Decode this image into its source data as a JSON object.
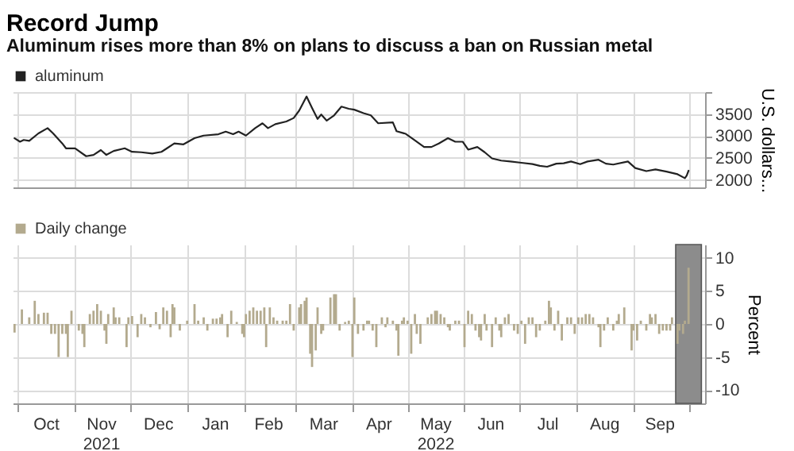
{
  "chart_data": [
    {
      "type": "line",
      "title": "Record Jump",
      "subtitle": "Aluminum rises more than 8% on plans to discuss a ban on Russian metal",
      "ylabel": "U.S. dollars...",
      "legend": "top left",
      "grid": true,
      "tick_labels": "y",
      "xlim": [
        "2021-09-28",
        "2022-10-10"
      ],
      "xticks": [
        {
          "value": "2021-10-01",
          "label": null
        },
        {
          "value": "2021-11-01",
          "label": null
        },
        {
          "value": "2021-12-01",
          "label": null
        },
        {
          "value": "2022-01-01",
          "label": null
        },
        {
          "value": "2022-02-01",
          "label": null
        },
        {
          "value": "2022-03-01",
          "label": null
        },
        {
          "value": "2022-04-01",
          "label": null
        },
        {
          "value": "2022-05-01",
          "label": null
        },
        {
          "value": "2022-06-01",
          "label": null
        },
        {
          "value": "2022-07-01",
          "label": null
        },
        {
          "value": "2022-08-01",
          "label": null
        },
        {
          "value": "2022-09-01",
          "label": null
        },
        {
          "value": "2022-10-01",
          "label": null
        }
      ],
      "ylim": [
        1830,
        4000
      ],
      "yticks": [
        2000,
        2500,
        3000,
        3500,
        {
          "value": 4000,
          "label": null
        }
      ],
      "series": [
        {
          "name": "aluminum",
          "color": "#222222",
          "x": [
            "2021-09-29",
            "2021-10-02",
            "2021-10-04",
            "2021-10-07",
            "2021-10-12",
            "2021-10-17",
            "2021-10-20",
            "2021-10-25",
            "2021-10-27",
            "2021-11-01",
            "2021-11-07",
            "2021-11-11",
            "2021-11-15",
            "2021-11-18",
            "2021-11-22",
            "2021-11-28",
            "2021-12-02",
            "2021-12-07",
            "2021-12-13",
            "2021-12-18",
            "2021-12-21",
            "2021-12-25",
            "2021-12-30",
            "2022-01-05",
            "2022-01-10",
            "2022-01-18",
            "2022-01-22",
            "2022-01-26",
            "2022-01-29",
            "2022-02-02",
            "2022-02-07",
            "2022-02-11",
            "2022-02-14",
            "2022-02-18",
            "2022-02-24",
            "2022-02-28",
            "2022-03-03",
            "2022-03-07",
            "2022-03-10",
            "2022-03-13",
            "2022-03-15",
            "2022-03-18",
            "2022-03-22",
            "2022-03-26",
            "2022-03-30",
            "2022-04-02",
            "2022-04-07",
            "2022-04-11",
            "2022-04-15",
            "2022-04-23",
            "2022-04-25",
            "2022-04-30",
            "2022-05-04",
            "2022-05-10",
            "2022-05-14",
            "2022-05-18",
            "2022-05-23",
            "2022-05-27",
            "2022-05-31",
            "2022-06-03",
            "2022-06-08",
            "2022-06-12",
            "2022-06-16",
            "2022-06-21",
            "2022-06-26",
            "2022-07-02",
            "2022-07-08",
            "2022-07-12",
            "2022-07-16",
            "2022-07-21",
            "2022-07-25",
            "2022-07-29",
            "2022-08-03",
            "2022-08-07",
            "2022-08-13",
            "2022-08-17",
            "2022-08-21",
            "2022-08-29",
            "2022-09-02",
            "2022-09-08",
            "2022-09-13",
            "2022-09-19",
            "2022-09-25",
            "2022-09-29",
            "2022-09-30",
            "2022-10-01"
          ],
          "values": [
            2950,
            2870,
            2910,
            2890,
            3060,
            3180,
            3060,
            2830,
            2720,
            2720,
            2540,
            2570,
            2680,
            2570,
            2660,
            2720,
            2640,
            2630,
            2600,
            2640,
            2720,
            2830,
            2810,
            2950,
            3010,
            3040,
            3100,
            3040,
            3100,
            3010,
            3180,
            3290,
            3180,
            3270,
            3330,
            3410,
            3580,
            3900,
            3640,
            3390,
            3490,
            3350,
            3470,
            3670,
            3620,
            3600,
            3520,
            3470,
            3290,
            3310,
            3110,
            3050,
            2930,
            2750,
            2750,
            2830,
            2950,
            2870,
            2870,
            2690,
            2750,
            2630,
            2490,
            2440,
            2420,
            2390,
            2360,
            2320,
            2300,
            2370,
            2380,
            2420,
            2360,
            2420,
            2460,
            2370,
            2350,
            2420,
            2270,
            2200,
            2240,
            2190,
            2130,
            2040,
            2100,
            2210
          ]
        }
      ]
    },
    {
      "type": "bar",
      "ylabel": "Percent",
      "legend": "top left",
      "grid": true,
      "xlim": [
        "2021-09-28",
        "2022-10-10"
      ],
      "xticks": [
        {
          "value": "2021-10-01",
          "label": null
        },
        {
          "value": "2021-10-16",
          "label": "Oct"
        },
        {
          "value": "2021-11-01",
          "label": null
        },
        {
          "value": "2021-11-15",
          "label": "Nov\n2021"
        },
        {
          "value": "2021-12-01",
          "label": null
        },
        {
          "value": "2021-12-16",
          "label": "Dec"
        },
        {
          "value": "2022-01-01",
          "label": null
        },
        {
          "value": "2022-01-16",
          "label": "Jan"
        },
        {
          "value": "2022-02-01",
          "label": null
        },
        {
          "value": "2022-02-14",
          "label": "Feb"
        },
        {
          "value": "2022-03-01",
          "label": null
        },
        {
          "value": "2022-03-16",
          "label": "Mar"
        },
        {
          "value": "2022-04-01",
          "label": null
        },
        {
          "value": "2022-04-15",
          "label": "Apr"
        },
        {
          "value": "2022-05-01",
          "label": null
        },
        {
          "value": "2022-05-16",
          "label": "May\n2022"
        },
        {
          "value": "2022-06-01",
          "label": null
        },
        {
          "value": "2022-06-15",
          "label": "Jun"
        },
        {
          "value": "2022-07-01",
          "label": null
        },
        {
          "value": "2022-07-16",
          "label": "Jul"
        },
        {
          "value": "2022-08-01",
          "label": null
        },
        {
          "value": "2022-08-16",
          "label": "Aug"
        },
        {
          "value": "2022-09-01",
          "label": null
        },
        {
          "value": "2022-09-15",
          "label": "Sep"
        },
        {
          "value": "2022-10-01",
          "label": null
        }
      ],
      "ylim": [
        -12,
        12
      ],
      "yticks": [
        -10,
        -5,
        0,
        5,
        10
      ],
      "bands": [
        {
          "axis": "x",
          "from": "2022-09-24",
          "to": "2022-10-08",
          "color": "#8c8c8c"
        }
      ],
      "series": [
        {
          "name": "Daily change",
          "color": "#b3aa8e",
          "x": [
            "2021-09-29",
            "2021-10-03",
            "2021-10-07",
            "2021-10-10",
            "2021-10-12",
            "2021-10-15",
            "2021-10-17",
            "2021-10-19",
            "2021-10-21",
            "2021-10-23",
            "2021-10-25",
            "2021-10-27",
            "2021-10-28",
            "2021-10-30",
            "2021-11-03",
            "2021-11-05",
            "2021-11-06",
            "2021-11-09",
            "2021-11-11",
            "2021-11-13",
            "2021-11-15",
            "2021-11-17",
            "2021-11-18",
            "2021-11-19",
            "2021-11-22",
            "2021-11-23",
            "2021-11-25",
            "2021-11-29",
            "2021-11-30",
            "2021-12-02",
            "2021-12-05",
            "2021-12-07",
            "2021-12-09",
            "2021-12-12",
            "2021-12-15",
            "2021-12-17",
            "2021-12-19",
            "2021-12-21",
            "2021-12-23",
            "2021-12-24",
            "2021-12-25",
            "2021-12-28",
            "2022-01-01",
            "2022-01-05",
            "2022-01-07",
            "2022-01-10",
            "2022-01-12",
            "2022-01-15",
            "2022-01-17",
            "2022-01-19",
            "2022-01-20",
            "2022-01-23",
            "2022-01-25",
            "2022-01-28",
            "2022-01-31",
            "2022-02-01",
            "2022-02-02",
            "2022-02-04",
            "2022-02-06",
            "2022-02-08",
            "2022-02-10",
            "2022-02-12",
            "2022-02-13",
            "2022-02-15",
            "2022-02-17",
            "2022-02-19",
            "2022-02-22",
            "2022-02-24",
            "2022-02-26",
            "2022-02-28",
            "2022-03-03",
            "2022-03-04",
            "2022-03-06",
            "2022-03-07",
            "2022-03-09",
            "2022-03-10",
            "2022-03-12",
            "2022-03-13",
            "2022-03-15",
            "2022-03-16",
            "2022-03-20",
            "2022-03-22",
            "2022-03-23",
            "2022-03-25",
            "2022-03-28",
            "2022-03-30",
            "2022-04-01",
            "2022-04-02",
            "2022-04-04",
            "2022-04-07",
            "2022-04-09",
            "2022-04-10",
            "2022-04-12",
            "2022-04-14",
            "2022-04-17",
            "2022-04-19",
            "2022-04-20",
            "2022-04-23",
            "2022-04-25",
            "2022-04-26",
            "2022-04-28",
            "2022-04-29",
            "2022-05-01",
            "2022-05-03",
            "2022-05-05",
            "2022-05-06",
            "2022-05-08",
            "2022-05-12",
            "2022-05-14",
            "2022-05-16",
            "2022-05-17",
            "2022-05-19",
            "2022-05-21",
            "2022-05-23",
            "2022-05-24",
            "2022-05-27",
            "2022-05-29",
            "2022-06-01",
            "2022-06-03",
            "2022-06-05",
            "2022-06-07",
            "2022-06-09",
            "2022-06-10",
            "2022-06-12",
            "2022-06-13",
            "2022-06-16",
            "2022-06-18",
            "2022-06-20",
            "2022-06-21",
            "2022-06-23",
            "2022-06-25",
            "2022-06-28",
            "2022-06-30",
            "2022-07-02",
            "2022-07-04",
            "2022-07-06",
            "2022-07-08",
            "2022-07-10",
            "2022-07-12",
            "2022-07-15",
            "2022-07-17",
            "2022-07-18",
            "2022-07-20",
            "2022-07-22",
            "2022-07-24",
            "2022-07-27",
            "2022-07-29",
            "2022-07-31",
            "2022-08-02",
            "2022-08-04",
            "2022-08-06",
            "2022-08-08",
            "2022-08-10",
            "2022-08-13",
            "2022-08-14",
            "2022-08-16",
            "2022-08-18",
            "2022-08-21",
            "2022-08-23",
            "2022-08-24",
            "2022-08-27",
            "2022-08-31",
            "2022-09-01",
            "2022-09-03",
            "2022-09-05",
            "2022-09-08",
            "2022-09-10",
            "2022-09-11",
            "2022-09-13",
            "2022-09-15",
            "2022-09-17",
            "2022-09-19",
            "2022-09-21",
            "2022-09-22",
            "2022-09-25",
            "2022-09-26",
            "2022-09-28",
            "2022-09-29",
            "2022-10-01"
          ],
          "values": [
            -1.3,
            2.2,
            1,
            3.5,
            1.5,
            1.7,
            1.7,
            -1.5,
            -1.5,
            -5,
            -1.5,
            -1.5,
            -5,
            2,
            -1,
            -1.5,
            -3.5,
            1.5,
            2,
            3,
            2,
            -1,
            -3,
            1.5,
            2.5,
            1,
            1,
            -3.5,
            1,
            1.2,
            -2,
            1.5,
            1,
            -0.5,
            1.8,
            -0.8,
            2.5,
            2,
            -2,
            3,
            2.5,
            -1,
            0.5,
            3,
            0.5,
            1,
            -1,
            0.8,
            0.8,
            1,
            1.5,
            -2,
            2,
            0.3,
            -1.5,
            -2,
            1.5,
            2,
            2.5,
            2,
            2,
            2.5,
            -3.5,
            2.5,
            1,
            0.5,
            0.5,
            0.5,
            3,
            -1,
            2.5,
            3,
            3.5,
            4,
            -4.5,
            -6.5,
            -4,
            2.5,
            -1.5,
            -1,
            4,
            4.5,
            4.5,
            -1,
            0.3,
            0.5,
            -5,
            4,
            -1.5,
            -1,
            0.5,
            0.5,
            -1,
            -3.5,
            1,
            -0.5,
            1,
            0.5,
            -1,
            -4.8,
            0.5,
            1,
            0.5,
            -4.5,
            1.5,
            -1.5,
            -3,
            1,
            1.5,
            2,
            2,
            1.5,
            1,
            -0.5,
            -1,
            0.5,
            0.5,
            -3.5,
            2,
            1.5,
            -1,
            -2,
            -2.5,
            1.5,
            -1,
            -3.5,
            1,
            -1,
            -2,
            1,
            1.5,
            -1,
            -1.5,
            0.5,
            -3,
            1,
            1,
            -2,
            -1,
            0.5,
            3.5,
            2.5,
            -1,
            2,
            -2.5,
            1,
            1,
            -1.5,
            1,
            1,
            1.5,
            1.5,
            1,
            -0.5,
            -3.5,
            -1,
            1,
            -1,
            0.5,
            1.5,
            2.5,
            -4,
            -1,
            -2.5,
            0.5,
            -1,
            1.5,
            1,
            1.5,
            -1.5,
            -1,
            -1,
            -1,
            1,
            -3,
            -1,
            -1.5,
            0.5,
            8.5
          ]
        }
      ]
    }
  ]
}
